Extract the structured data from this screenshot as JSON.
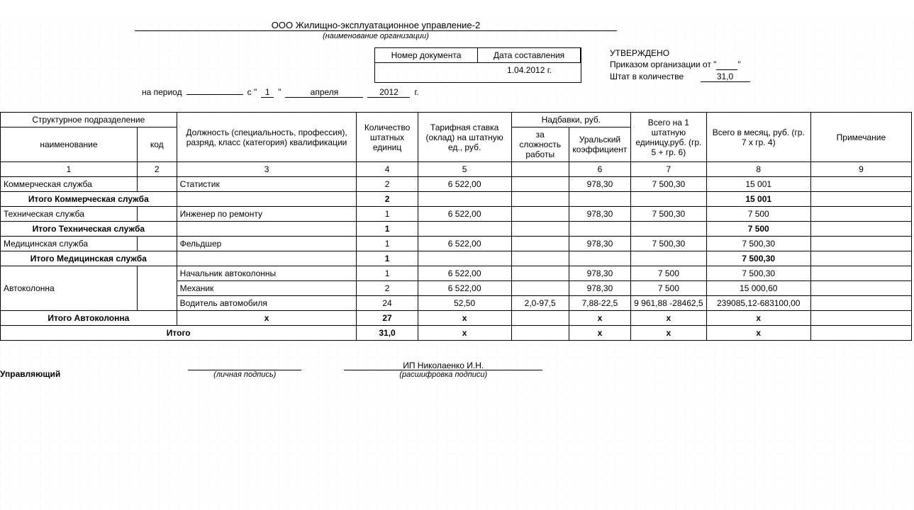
{
  "org": {
    "name": "ООО Жилищно-эксплуатационное управление-2",
    "sub": "(наименование организации)"
  },
  "docBox": {
    "h1": "Номер документа",
    "h2": "Дата составления",
    "v1": "",
    "v2": "1.04.2012 г."
  },
  "approve": {
    "title": "УТВЕРЖДЕНО",
    "line1a": "Приказом организации от \"",
    "line1b": "\"",
    "line2a": "Штат в количестве",
    "count": "31,0"
  },
  "period": {
    "label": "на период",
    "c1": "с \"",
    "day": "1",
    "q2": "\"",
    "month": "апреля",
    "year": "2012",
    "g": "г."
  },
  "headers": {
    "struct": "Структурное подразделение",
    "name": "наименование",
    "code": "код",
    "position": "Должность (специальность, профессия), разряд, класс (категория) квалификации",
    "qty": "Количество штатных единиц",
    "rate": "Тарифная ставка (оклад) на штатную ед., руб.",
    "allow": "Надбавки, руб.",
    "allow1": "за сложность работы",
    "allow2": "Уральский коэффициент",
    "perUnit": "Всего на 1 штатную единицу,руб. (гр. 5 + гр. 6)",
    "perMonth": "Всего в месяц, руб. (гр. 7 х гр. 4)",
    "note": "Примечание"
  },
  "colnums": [
    "1",
    "2",
    "3",
    "4",
    "5",
    "",
    "6",
    "7",
    "8",
    "9"
  ],
  "rows": [
    {
      "type": "data",
      "name": "Коммерческая служба",
      "code": "",
      "pos": "Статистик",
      "qty": "2",
      "rate": "6 522,00",
      "a1": "",
      "a2": "978,30",
      "u": "7 500,30",
      "m": "15 001",
      "note": ""
    },
    {
      "type": "sub",
      "label": "Итого Коммерческая служба",
      "qty": "2",
      "m": "15 001"
    },
    {
      "type": "data",
      "name": "Техническая служба",
      "code": "",
      "pos": "Инженер по ремонту",
      "qty": "1",
      "rate": "6 522,00",
      "a1": "",
      "a2": "978,30",
      "u": "7 500,30",
      "m": "7 500",
      "note": ""
    },
    {
      "type": "sub",
      "label": "Итого Техническая  служба",
      "qty": "1",
      "m": "7 500"
    },
    {
      "type": "data",
      "name": "Медицинская служба",
      "code": "",
      "pos": "Фельдшер",
      "qty": "1",
      "rate": "6 522,00",
      "a1": "",
      "a2": "978,30",
      "u": "7 500,30",
      "m": "7 500,30",
      "note": ""
    },
    {
      "type": "sub",
      "label": "Итого Медицинская служба",
      "qty": "1",
      "m": "7 500,30"
    },
    {
      "type": "data",
      "name": "Автоколонна",
      "code": "",
      "pos": "Начальник автоколонны",
      "qty": "1",
      "rate": "6 522,00",
      "a1": "",
      "a2": "978,30",
      "u": "7 500",
      "m": "7 500,30",
      "note": "",
      "rowspan": 3
    },
    {
      "type": "data",
      "pos": "Механик",
      "qty": "2",
      "rate": "6 522,00",
      "a1": "",
      "a2": "978,30",
      "u": "7 500",
      "m": "15 000,60",
      "note": ""
    },
    {
      "type": "data",
      "pos": "Водитель автомобиля",
      "qty": "24",
      "rate": "52,50",
      "a1": "2,0-97,5",
      "a2": "7,88-22,5",
      "u": "9 961,88 -28462,5",
      "m": "239085,12-683100,00",
      "note": ""
    },
    {
      "type": "sub",
      "label": "Итого Автоколонна",
      "pos": "х",
      "qty": "27",
      "rate": "х",
      "a2": "х",
      "u": "х",
      "m": "х"
    },
    {
      "type": "grand",
      "label": "Итого",
      "qty": "31,0",
      "rate": "х",
      "a2": "х",
      "u": "х",
      "m": "х"
    }
  ],
  "sign": {
    "role": "Управляющий",
    "sub1": "(личная подпись)",
    "name": "ИП Николаенко И.Н.",
    "sub2": "(расшифровка подписи)"
  }
}
